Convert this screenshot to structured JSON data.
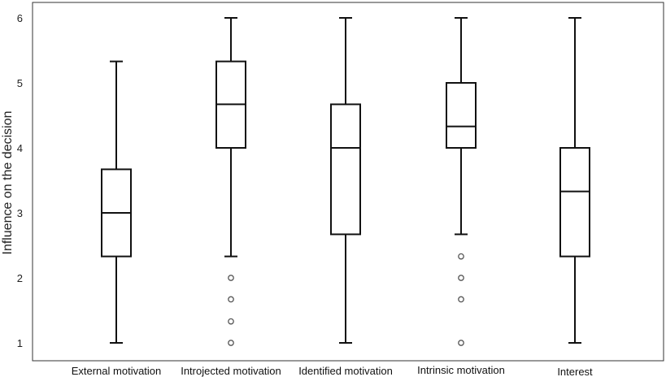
{
  "chart_data": {
    "type": "box",
    "ylabel": "Influence on the decision",
    "xlabel": "",
    "ylim": [
      0.85,
      6.2
    ],
    "yticks": [
      1,
      2,
      3,
      4,
      5,
      6
    ],
    "grid": false,
    "categories": [
      "External motivation",
      "Introjected motivation",
      "Identified motivation",
      "Intrinsic motivation",
      "Interest"
    ],
    "boxes": [
      {
        "whisker_low": 1.0,
        "q1": 2.33,
        "median": 3.0,
        "q3": 3.67,
        "whisker_high": 5.33,
        "outliers": []
      },
      {
        "whisker_low": 2.33,
        "q1": 4.0,
        "median": 4.67,
        "q3": 5.33,
        "whisker_high": 6.0,
        "outliers": [
          2.0,
          1.67,
          1.33,
          1.0
        ]
      },
      {
        "whisker_low": 1.0,
        "q1": 2.67,
        "median": 4.0,
        "q3": 4.67,
        "whisker_high": 6.0,
        "outliers": []
      },
      {
        "whisker_low": 2.67,
        "q1": 4.0,
        "median": 4.33,
        "q3": 5.0,
        "whisker_high": 6.0,
        "outliers": [
          2.33,
          2.0,
          1.67,
          1.0
        ]
      },
      {
        "whisker_low": 1.0,
        "q1": 2.33,
        "median": 3.33,
        "q3": 4.0,
        "whisker_high": 6.0,
        "outliers": []
      }
    ]
  }
}
